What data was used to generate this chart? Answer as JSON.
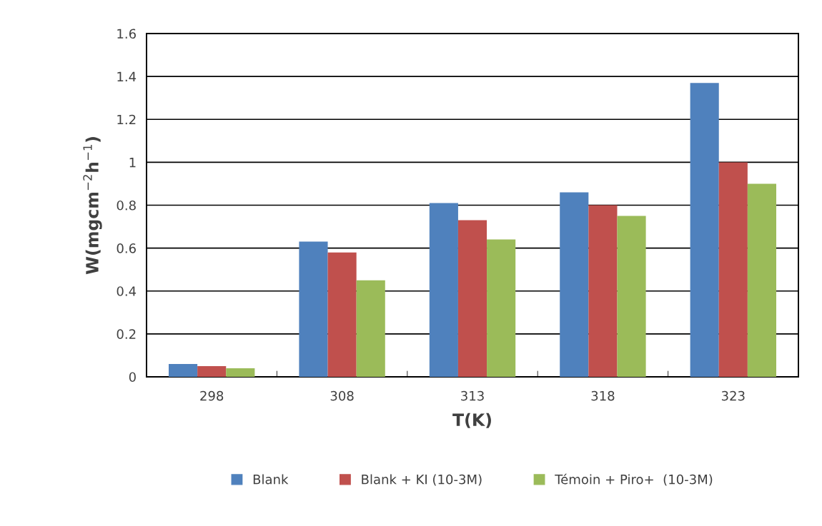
{
  "chart_data": {
    "type": "bar",
    "xlabel": "T(K)",
    "ylabel": "W(mgcm$^{−2}$h$^{−1}$)",
    "categories": [
      "298",
      "308",
      "313",
      "318",
      "323"
    ],
    "series": [
      {
        "name": "Blank",
        "color": "#4f81bd",
        "values": [
          0.06,
          0.63,
          0.81,
          0.86,
          1.37
        ]
      },
      {
        "name": "Blank + KI (10-3M)",
        "color": "#c0504d",
        "values": [
          0.05,
          0.58,
          0.73,
          0.8,
          1.0
        ]
      },
      {
        "name": "Témoin + Piro+  (10-3M)",
        "color": "#9bbb59",
        "values": [
          0.04,
          0.45,
          0.64,
          0.75,
          0.9
        ]
      }
    ],
    "ylim": [
      0,
      1.6
    ],
    "yticks": [
      0,
      0.2,
      0.4,
      0.6,
      0.8,
      1,
      1.2,
      1.4,
      1.6
    ],
    "grid": "y",
    "legend": "bottom"
  }
}
